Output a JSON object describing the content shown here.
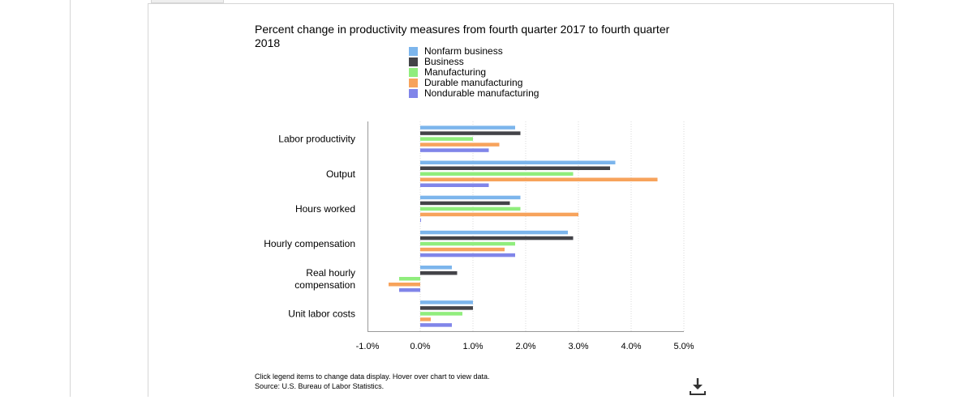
{
  "chart_data": {
    "type": "bar",
    "orientation": "horizontal",
    "title": "Percent change in productivity measures from fourth quarter 2017 to fourth quarter 2018",
    "categories": [
      "Labor productivity",
      "Output",
      "Hours worked",
      "Hourly compensation",
      "Real hourly compensation",
      "Unit labor costs"
    ],
    "series": [
      {
        "name": "Nonfarm business",
        "color": "#7cb5ec",
        "values": [
          1.8,
          3.7,
          1.9,
          2.8,
          0.6,
          1.0
        ]
      },
      {
        "name": "Business",
        "color": "#434348",
        "values": [
          1.9,
          3.6,
          1.7,
          2.9,
          0.7,
          1.0
        ]
      },
      {
        "name": "Manufacturing",
        "color": "#90ed7d",
        "values": [
          1.0,
          2.9,
          1.9,
          1.8,
          -0.4,
          0.8
        ]
      },
      {
        "name": "Durable manufacturing",
        "color": "#f7a35c",
        "values": [
          1.5,
          4.5,
          3.0,
          1.6,
          -0.6,
          0.2
        ]
      },
      {
        "name": "Nondurable manufacturing",
        "color": "#8085e9",
        "values": [
          1.3,
          1.3,
          0.0,
          1.8,
          -0.4,
          0.6
        ]
      }
    ],
    "xlim": [
      -1.0,
      5.0
    ],
    "xticks": [
      "-1.0%",
      "0.0%",
      "1.0%",
      "2.0%",
      "3.0%",
      "4.0%",
      "5.0%"
    ],
    "xlabel": "",
    "ylabel": "",
    "grid": "vertical dotted",
    "legend": "top-center"
  },
  "footer": {
    "line1": "Click legend items to change data display. Hover over chart to view data.",
    "line2": "Source: U.S. Bureau of Labor Statistics."
  },
  "icons": {
    "download": "download-icon"
  }
}
